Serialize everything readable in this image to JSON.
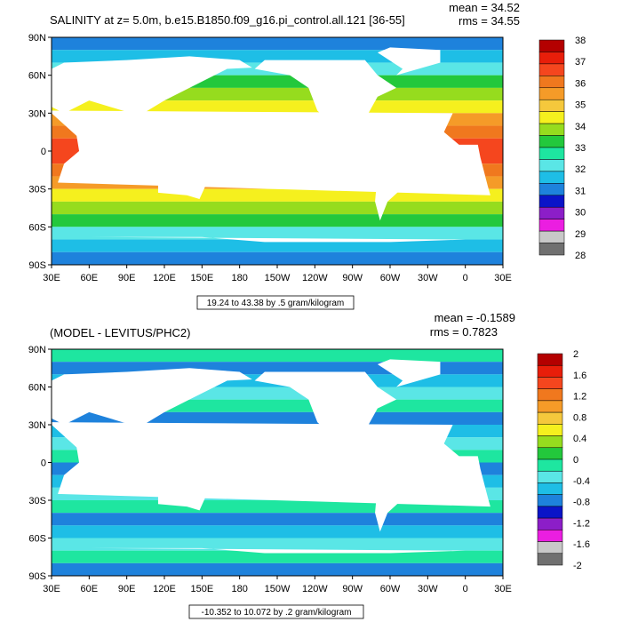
{
  "chart_data": [
    {
      "type": "heatmap",
      "title": "SALINITY at z=   5.0m, b.e15.B1850.f09_g16.pi_control.all.121 [36-55]",
      "mean_label": "mean = 34.52",
      "rms_label": "rms = 34.55",
      "range_note": "19.24 to 43.38 by .5 gram/kilogram",
      "lat_ticks": [
        "90N",
        "60N",
        "30N",
        "0",
        "30S",
        "60S",
        "90S"
      ],
      "lon_ticks": [
        "30E",
        "60E",
        "90E",
        "120E",
        "150E",
        "180",
        "150W",
        "120W",
        "90W",
        "60W",
        "30W",
        "0",
        "30E"
      ],
      "colorbar": {
        "labels": [
          "38",
          "37",
          "36",
          "35",
          "34",
          "33",
          "32",
          "31",
          "30",
          "29",
          "28"
        ],
        "colors": [
          "#b40000",
          "#e81e0a",
          "#f5461e",
          "#f0781e",
          "#f59b28",
          "#f5c83c",
          "#f5f01e",
          "#96dc1e",
          "#23c83c",
          "#1ee6a0",
          "#5ae6e6",
          "#1ebee6",
          "#1e82dc",
          "#0a14c8",
          "#8c1ec8",
          "#eb1ee1",
          "#c8c8c8",
          "#707070"
        ]
      }
    },
    {
      "type": "heatmap",
      "title": "(MODEL - LEVITUS/PHC2)",
      "mean_label": "mean = -0.1589",
      "rms_label": "rms = 0.7823",
      "range_note": "-10.352 to 10.072 by .2 gram/kilogram",
      "lat_ticks": [
        "90N",
        "60N",
        "30N",
        "0",
        "30S",
        "60S",
        "90S"
      ],
      "lon_ticks": [
        "30E",
        "60E",
        "90E",
        "120E",
        "150E",
        "180",
        "150W",
        "120W",
        "90W",
        "60W",
        "30W",
        "0",
        "30E"
      ],
      "colorbar": {
        "labels": [
          "2",
          "1.6",
          "1.2",
          "0.8",
          "0.4",
          "0",
          "-0.4",
          "-0.8",
          "-1.2",
          "-1.6",
          "-2"
        ],
        "colors": [
          "#b40000",
          "#e81e0a",
          "#f5461e",
          "#f0781e",
          "#f59b28",
          "#f5c83c",
          "#f5f01e",
          "#96dc1e",
          "#23c83c",
          "#1ee6a0",
          "#5ae6e6",
          "#1ebee6",
          "#1e82dc",
          "#0a14c8",
          "#8c1ec8",
          "#eb1ee1",
          "#c8c8c8",
          "#707070"
        ]
      }
    }
  ]
}
